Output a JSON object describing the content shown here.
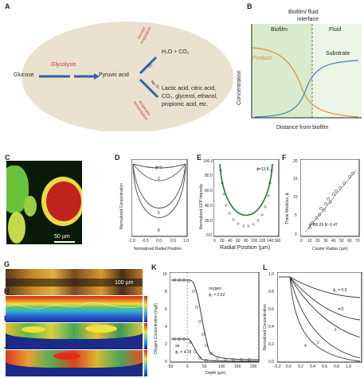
{
  "panels": {
    "A": {
      "label": "A",
      "glucose": "Glucose",
      "glycolysis": "Glycolysis",
      "pyruvic": "Pyruvic acid",
      "aerobic": "Aerobic respiration",
      "o2": "O₂",
      "aerobic_products": "H₂O + CO₂",
      "no_o2": "No O₂",
      "anaerobic": "Anaerobic fermentation",
      "anaerobic_products_1": "Lactic acid, citric acid,",
      "anaerobic_products_2": "CO₂, glycerol, ethanol,",
      "anaerobic_products_3": "propionic acid, etc."
    },
    "B": {
      "label": "B",
      "title_1": "Biofilm/ fluid",
      "title_2": "interface",
      "biofilm": "Biofilm",
      "fluid": "Fluid",
      "product": "Product",
      "substrate": "Substrate",
      "ylabel": "Concentration",
      "xlabel": "Distance from biofilm"
    },
    "C": {
      "label": "C",
      "scalebar": "50 µm"
    },
    "D": {
      "label": "D",
      "ylabel": "Normalized Concentration",
      "xlabel": "Normalized Radial Position",
      "xticks": [
        "-1.0",
        "-0.5",
        "0.0",
        "0.5",
        "1.0"
      ],
      "curve_labels": [
        "ϕ=1",
        "2",
        "5",
        "8"
      ]
    },
    "E": {
      "label": "E",
      "ylabel": "Normalized GFP Intensity",
      "xlabel": "Radial Position (µm)",
      "yticks": [
        "100.0",
        "80.0",
        "60.0",
        "40.0",
        "20.0",
        "0.0"
      ],
      "xticks": [
        "0",
        "20",
        "40",
        "60",
        "80",
        "100",
        "120",
        "140",
        "160"
      ],
      "phi_label": "ϕ=13.8"
    },
    "F": {
      "label": "F",
      "ylabel": "Thiele Modulus, ϕ",
      "xlabel": "Cluster Radius (µm)",
      "yticks": [
        "20",
        "15",
        "10",
        "5",
        "0"
      ],
      "xticks": [
        "0",
        "10",
        "20",
        "30",
        "40",
        "50",
        "60",
        "70"
      ],
      "equation": "ϕ = 0.26 R−0.47"
    },
    "G": {
      "label": "G",
      "scalebar": "100 µm"
    },
    "H": {
      "label": "H"
    },
    "I": {
      "label": "I"
    },
    "J": {
      "label": "J"
    },
    "K": {
      "label": "K",
      "ylabel": "Oxygen Concentration (mg/l)",
      "xlabel": "Depth (µm)",
      "yticks": [
        "10",
        "8",
        "6",
        "4",
        "2",
        "0"
      ],
      "xticks": [
        "-50",
        "0",
        "50",
        "100",
        "150",
        "200"
      ],
      "oxygen_label": "oxygen",
      "oxygen_phi": "ϕ₀ = 2.62",
      "air_label": "air",
      "air_phi": "ϕ₀ = 4.78"
    },
    "L": {
      "label": "L",
      "ylabel": "Normalized Concentration",
      "yticks": [
        "1.0",
        "0.8",
        "0.6",
        "0.4",
        "0.2",
        "0.0"
      ],
      "xticks": [
        "-0.2",
        "0.0",
        "0.2",
        "0.4",
        "0.6",
        "0.8",
        "1.0"
      ],
      "curve_labels": [
        "ϕ₀ = 0.5",
        "π/2",
        "1",
        "2",
        "4"
      ]
    }
  },
  "colors": {
    "oval_fill": "#eae2cf",
    "arrow_blue": "#2e5fa8",
    "red_text": "#c0392b",
    "biofilm_bg": "#d8ebcc",
    "product_orange": "#e98b3a",
    "substrate_blue": "#3f7fc0"
  }
}
